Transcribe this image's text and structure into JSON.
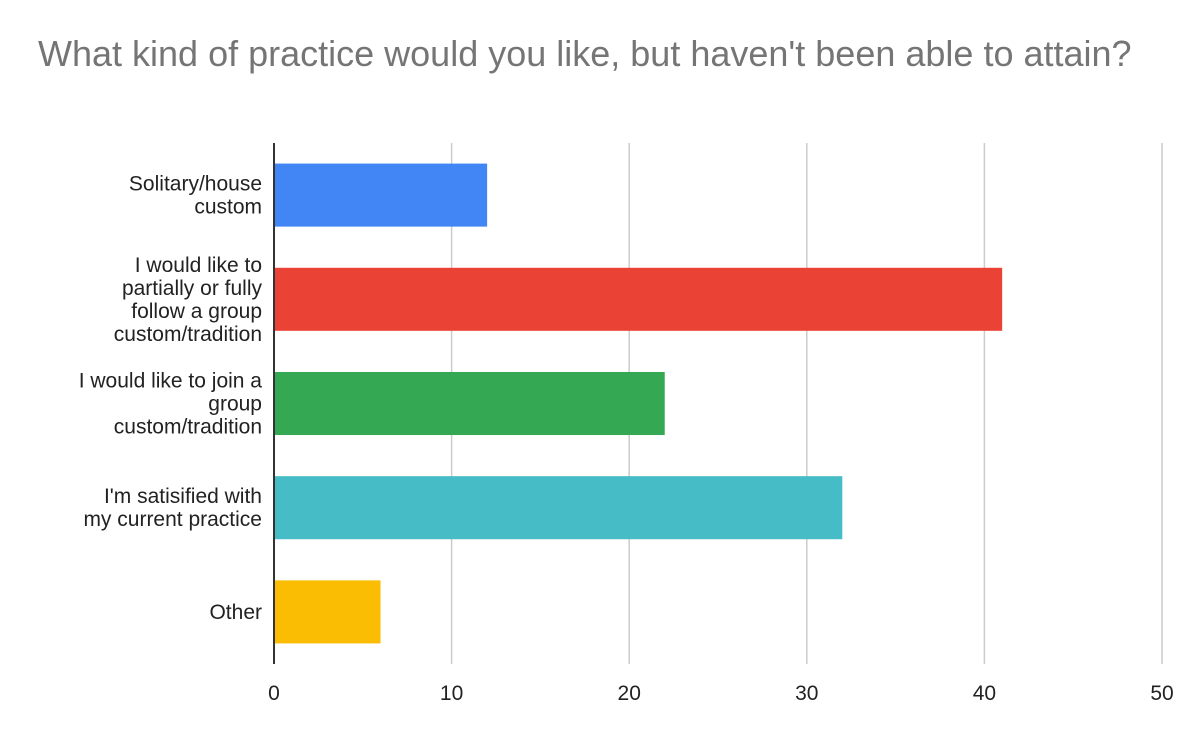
{
  "chart_data": {
    "type": "bar",
    "orientation": "horizontal",
    "title": "What kind of practice would you like, but haven't been able to attain?",
    "categories": [
      "Solitary/house custom",
      "I would like to partially or fully follow a group custom/tradition",
      "I would like to join a group custom/tradition",
      "I'm satisified with my current practice",
      "Other"
    ],
    "category_label_lines": [
      [
        "Solitary/house",
        "custom"
      ],
      [
        "I would like to",
        "partially or fully",
        "follow a group",
        "custom/tradition"
      ],
      [
        "I would like to join a",
        "group",
        "custom/tradition"
      ],
      [
        "I'm satisified with",
        "my current practice"
      ],
      [
        "Other"
      ]
    ],
    "values": [
      12,
      41,
      22,
      32,
      6
    ],
    "bar_colors": [
      "#4285f4",
      "#ea4335",
      "#34a853",
      "#46bdc6",
      "#fbbc04"
    ],
    "xlim": [
      0,
      50
    ],
    "xticks": [
      0,
      10,
      20,
      30,
      40,
      50
    ],
    "xlabel": "",
    "ylabel": "",
    "grid": true,
    "legend": "none"
  }
}
